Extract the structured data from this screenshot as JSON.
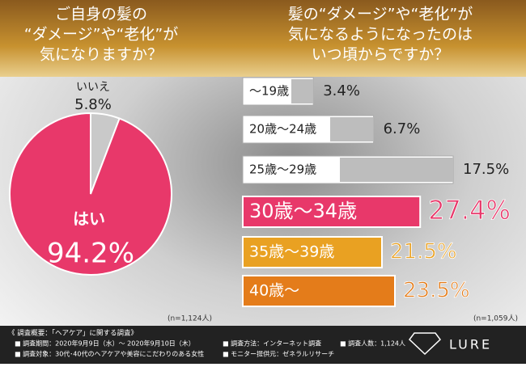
{
  "chart_data": [
    {
      "type": "pie",
      "title": [
        "ご自身の髪の",
        "“ダメージ”や“老化”が",
        "気になりますか？"
      ],
      "categories": [
        "いいえ",
        "はい"
      ],
      "values": [
        5.8,
        94.2
      ],
      "value_labels": [
        "5.8%",
        "94.2%"
      ],
      "colors": [
        "#c9c9c9",
        "#e8386a"
      ],
      "note": "(n=1,124人)"
    },
    {
      "type": "hbar",
      "title": [
        "髪の“ダメージ”や“老化”が",
        "気になるようになったのは",
        "いつ頃からですか？"
      ],
      "categories": [
        "～19歳",
        "20歳～24歳",
        "25歳～29歳",
        "30歳～34歳",
        "35歳～39歳",
        "40歳～"
      ],
      "values": [
        3.4,
        6.7,
        17.5,
        27.4,
        21.5,
        23.5
      ],
      "value_labels": [
        "3.4%",
        "6.7%",
        "17.5%",
        "27.4%",
        "21.5%",
        "23.5%"
      ],
      "colors": [
        "#bdbdbd",
        "#bdbdbd",
        "#bdbdbd",
        "#e8386a",
        "#e9a122",
        "#e47c1a"
      ],
      "note": "(n=1,059人)"
    }
  ],
  "footer": {
    "heading": "《 調査概要：「ヘアケア」に関する調査》",
    "items": [
      "■ 調査期間：2020年9月9日（水）～ 2020年9月10日（木）",
      "■ 調査対象：30代･40代のヘアケアや美容にこだわりのある女性",
      "■ 調査方法：インターネット調査",
      "■ モニター提供元：ゼネラルリサーチ",
      "■ 調査人数：1,124人"
    ]
  },
  "logo": "LURE"
}
